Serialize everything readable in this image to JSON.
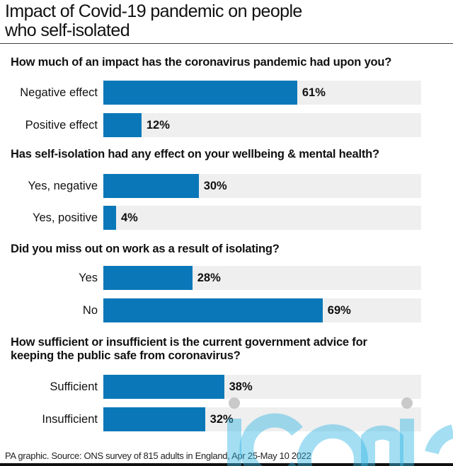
{
  "chart_data": {
    "type": "bar",
    "orientation": "horizontal",
    "title": "Impact of Covid-19 pandemic on people who self-isolated",
    "title_lines": [
      "Impact of Covid-19 pandemic on people",
      "who self-isolated"
    ],
    "xlim": [
      0,
      100
    ],
    "unit": "%",
    "bar_color": "#0a78b8",
    "track_color": "#efefef",
    "groups": [
      {
        "question": [
          "How much of an impact has the coronavirus pandemic had upon you?"
        ],
        "items": [
          {
            "label": "Negative effect",
            "value": 61,
            "value_label": "61%"
          },
          {
            "label": "Positive effect",
            "value": 12,
            "value_label": "12%"
          }
        ]
      },
      {
        "question": [
          "Has self-isolation had any effect on your wellbeing & mental health?"
        ],
        "items": [
          {
            "label": "Yes, negative",
            "value": 30,
            "value_label": "30%"
          },
          {
            "label": "Yes, positive",
            "value": 4,
            "value_label": "4%"
          }
        ]
      },
      {
        "question": [
          "Did you miss out on work as a result of isolating?"
        ],
        "items": [
          {
            "label": "Yes",
            "value": 28,
            "value_label": "28%"
          },
          {
            "label": "No",
            "value": 69,
            "value_label": "69%"
          }
        ]
      },
      {
        "question": [
          "How sufficient or insufficient is the current government advice for",
          "keeping the public safe from coronavirus?"
        ],
        "items": [
          {
            "label": "Sufficient",
            "value": 38,
            "value_label": "38%"
          },
          {
            "label": "Insufficient",
            "value": 32,
            "value_label": "32%"
          }
        ]
      }
    ],
    "source": "PA graphic. Source: ONS survey of 815 adults in England, Apr 25-May 10 2022"
  },
  "watermark": "iconic"
}
